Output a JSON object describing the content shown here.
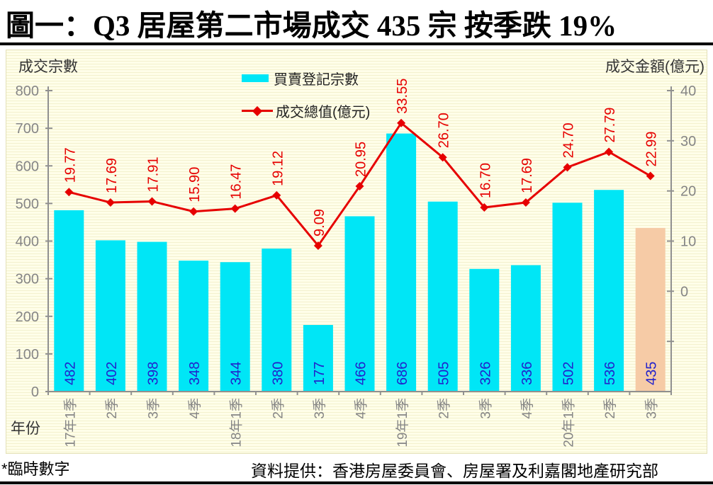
{
  "title": "圖一：Q3 居屋第二市場成交 435 宗 按季跌 19%",
  "footer": {
    "note": "*臨時數字",
    "source": "資料提供：香港房屋委員會、房屋署及利嘉閣地產研究部"
  },
  "colors": {
    "bar": "#00E6F6",
    "bar_provisional": "#F6CBA6",
    "line": "#E60000",
    "bar_value_label": "#2222CC",
    "line_value_label": "#E60000",
    "axis": "#909090",
    "tick_label": "#858585",
    "chart_bg": "#FFFEE4"
  },
  "chart_data": {
    "type": "bar+line combo",
    "title": "圖一：Q3 居屋第二市場成交 435 宗 按季跌 19%",
    "categories": [
      "17年1季",
      "2季",
      "3季",
      "4季",
      "18年1季",
      "2季",
      "3季",
      "4季",
      "19年1季",
      "2季",
      "3季",
      "4季",
      "20年1季",
      "2季",
      "3季"
    ],
    "series": [
      {
        "name": "買賣登記宗數",
        "type": "bar",
        "axis": "left",
        "values": [
          482,
          402,
          398,
          348,
          344,
          380,
          177,
          466,
          686,
          505,
          326,
          336,
          502,
          536,
          435
        ],
        "provisional_index": 14
      },
      {
        "name": "成交總值(億元)",
        "type": "line",
        "axis": "right",
        "values": [
          19.77,
          17.69,
          17.91,
          15.9,
          16.47,
          19.12,
          9.09,
          20.95,
          33.55,
          26.7,
          16.7,
          17.69,
          24.7,
          27.79,
          22.99
        ]
      }
    ],
    "left_axis": {
      "title": "成交宗數",
      "min": 0,
      "max": 800,
      "ticks": [
        0,
        100,
        200,
        300,
        400,
        500,
        600,
        700,
        800
      ]
    },
    "right_axis": {
      "title": "成交金額(億元)",
      "min": -20,
      "max": 40,
      "labeled_ticks": [
        0,
        10,
        20,
        30,
        40
      ],
      "unlabeled_ticks": [
        -10
      ]
    },
    "x_axis": {
      "title": "年份"
    },
    "legend": {
      "items": [
        "買賣登記宗數",
        "成交總值(億元)"
      ],
      "position": "top-center"
    },
    "grid": "off",
    "note": "last bar (20年3季 = 435) drawn in peach marking provisional figure (*臨時數字)"
  }
}
